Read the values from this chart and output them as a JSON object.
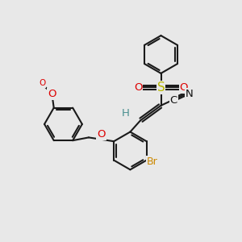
{
  "bg_color": "#e8e8e8",
  "bond_color": "#1a1a1a",
  "bond_lw": 1.5,
  "atom_colors": {
    "O": "#dd0000",
    "S": "#b8b800",
    "N": "#111111",
    "Br": "#cc8800",
    "H": "#4a9090",
    "C": "#111111"
  },
  "font_size": 9.5,
  "ring_r": 0.78,
  "dbl_d": 0.082,
  "dbl_shorten": 0.12
}
